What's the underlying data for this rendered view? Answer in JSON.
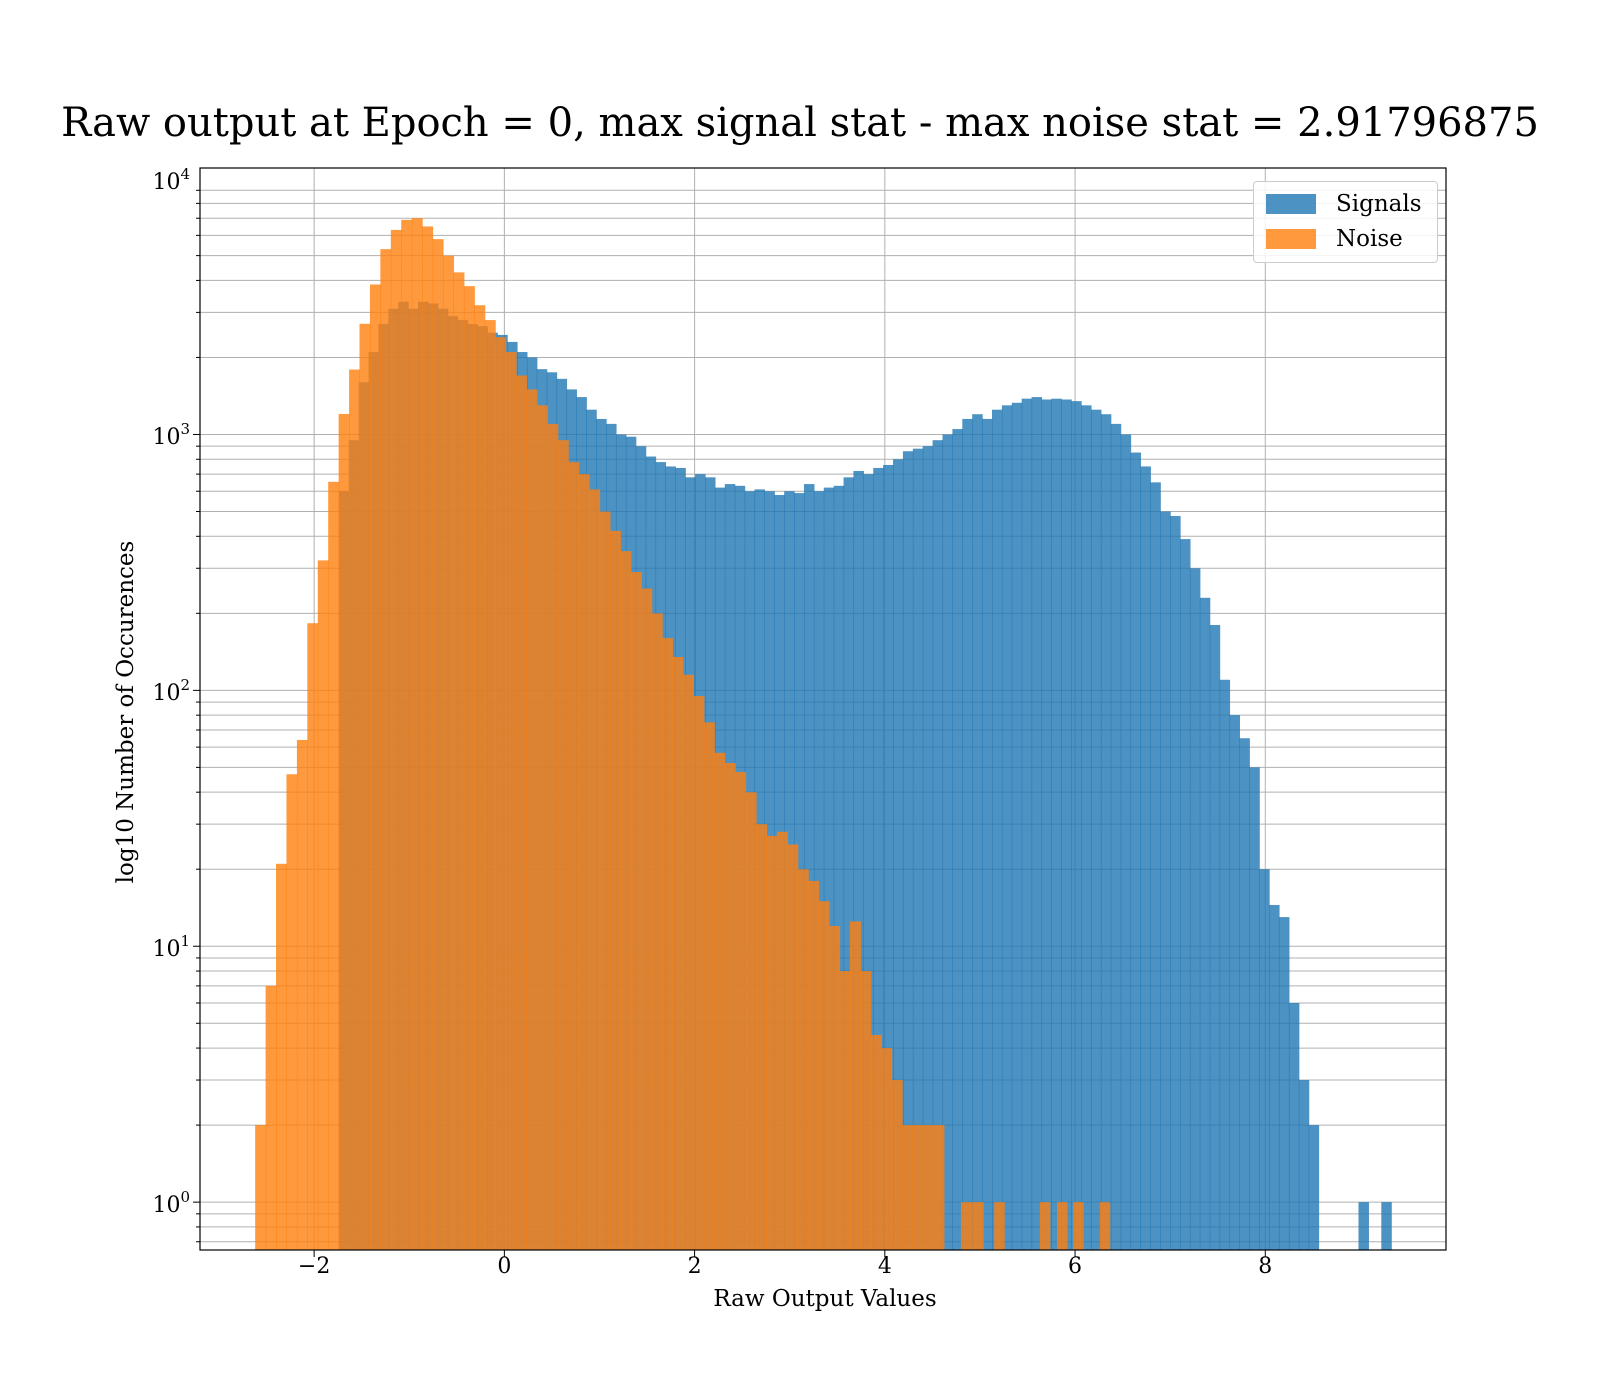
{
  "chart_data": {
    "type": "bar",
    "title": "Raw output at Epoch = 0, max signal stat - max noise stat = 2.91796875",
    "xlabel": "Raw Output Values",
    "ylabel": "log10 Number of Occurences",
    "yscale": "log",
    "xlim": [
      -3.2,
      9.9
    ],
    "ylim": [
      0.65,
      11000
    ],
    "grid": true,
    "legend_position": "top-right",
    "x_ticks": [
      -2,
      0,
      2,
      4,
      6,
      8
    ],
    "x_tick_labels": [
      "−2",
      "0",
      "2",
      "4",
      "6",
      "8"
    ],
    "y_ticks": [
      1,
      10,
      100,
      1000,
      10000
    ],
    "y_tick_bases": [
      "10",
      "10",
      "10",
      "10",
      "10"
    ],
    "y_tick_exponents": [
      "0",
      "1",
      "2",
      "3",
      "4"
    ],
    "series": [
      {
        "name": "Signals",
        "color": "#1f77b4",
        "bin_edges": [
          -1.74,
          8.56
        ],
        "values": [
          600,
          950,
          1600,
          2100,
          2700,
          3100,
          3300,
          3100,
          3300,
          3250,
          3100,
          2900,
          2800,
          2700,
          2650,
          2500,
          2450,
          2300,
          2100,
          2000,
          1800,
          1750,
          1650,
          1500,
          1400,
          1250,
          1150,
          1100,
          1000,
          980,
          900,
          820,
          780,
          750,
          740,
          680,
          700,
          680,
          620,
          640,
          630,
          600,
          610,
          600,
          580,
          600,
          590,
          640,
          600,
          620,
          630,
          680,
          720,
          700,
          740,
          760,
          800,
          860,
          880,
          900,
          950,
          1000,
          1050,
          1150,
          1200,
          1150,
          1250,
          1300,
          1330,
          1380,
          1400,
          1370,
          1380,
          1370,
          1350,
          1300,
          1250,
          1200,
          1100,
          1000,
          850,
          750,
          650,
          500,
          480,
          390,
          300,
          230,
          180,
          110,
          80,
          65,
          50,
          20,
          14.5,
          13,
          6,
          3,
          2
        ]
      },
      {
        "name": "Noise",
        "color": "#ff7f0e",
        "bin_edges": [
          -2.62,
          4.62
        ],
        "values": [
          2,
          7,
          21,
          47,
          64,
          183,
          322,
          653,
          1203,
          1794,
          2707,
          3856,
          5300,
          6300,
          6900,
          7000,
          6500,
          5800,
          5000,
          4300,
          3800,
          3200,
          2800,
          2400,
          2100,
          1700,
          1500,
          1300,
          1100,
          950,
          780,
          700,
          610,
          500,
          420,
          350,
          290,
          250,
          200,
          160,
          135,
          115,
          95,
          75,
          57,
          52,
          48,
          40,
          30,
          27,
          28,
          25,
          20,
          18,
          15,
          12,
          8,
          12.5,
          8,
          4.5,
          4,
          3,
          2,
          2,
          2,
          2
        ]
      }
    ],
    "signal_tail": [
      {
        "x0": 8.98,
        "x1": 9.09,
        "value": 1
      },
      {
        "x0": 9.22,
        "x1": 9.33,
        "value": 1
      }
    ],
    "noise_tail": [
      {
        "x0": 4.8,
        "x1": 4.92,
        "value": 1
      },
      {
        "x0": 4.92,
        "x1": 5.04,
        "value": 1
      },
      {
        "x0": 5.15,
        "x1": 5.26,
        "value": 1
      },
      {
        "x0": 5.63,
        "x1": 5.74,
        "value": 1
      },
      {
        "x0": 5.81,
        "x1": 5.92,
        "value": 1
      },
      {
        "x0": 5.98,
        "x1": 6.09,
        "value": 1
      },
      {
        "x0": 6.26,
        "x1": 6.37,
        "value": 1
      }
    ]
  }
}
